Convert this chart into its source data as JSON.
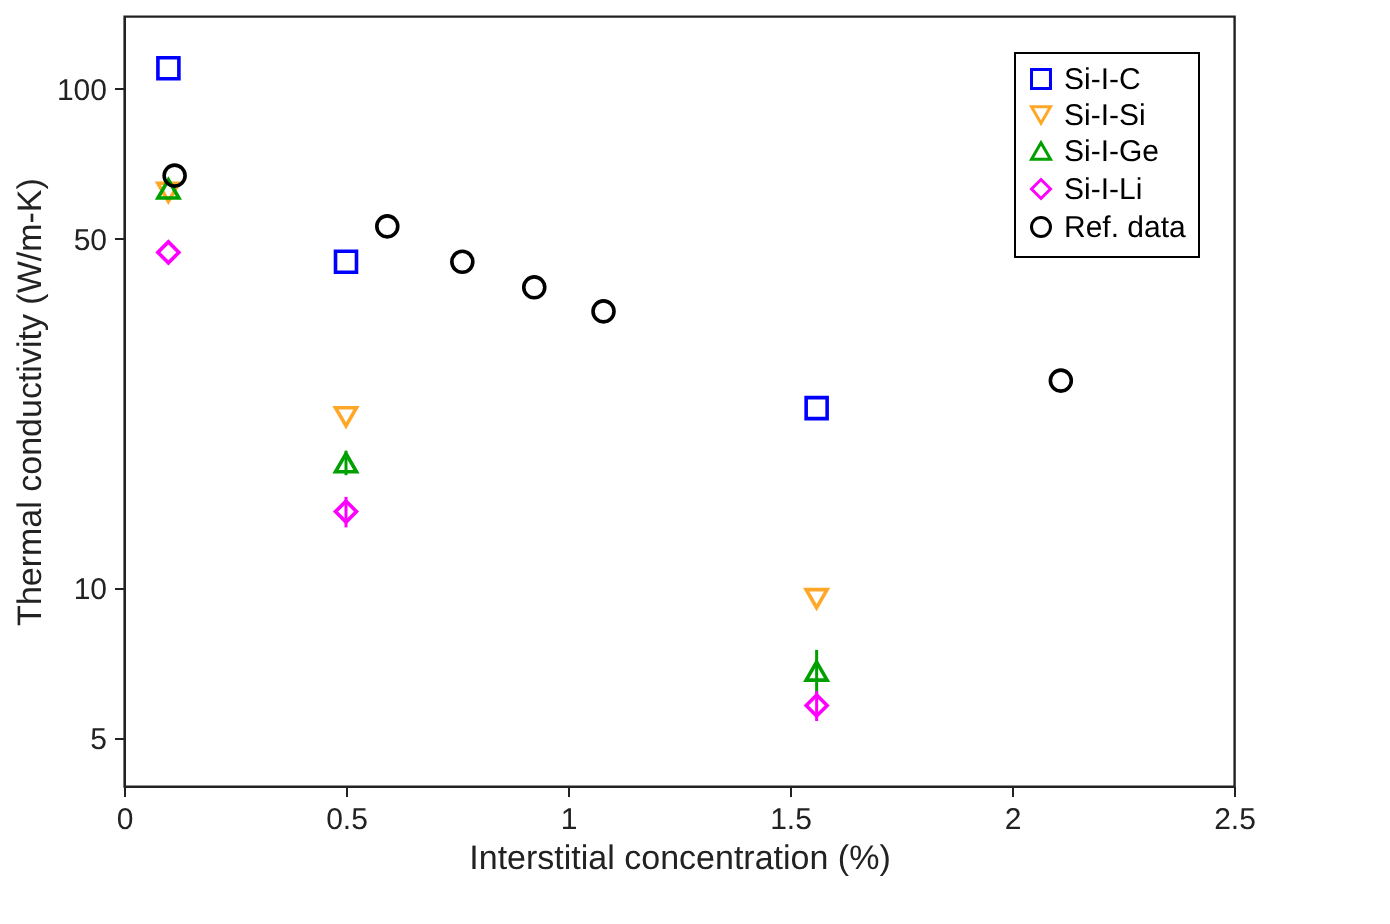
{
  "chart_data": {
    "type": "scatter",
    "xlabel": "Interstitial concentration (%)",
    "ylabel": "Thermal conductivity (W/m-K)",
    "xlim": [
      0,
      2.5
    ],
    "xticks": [
      0,
      0.5,
      1,
      1.5,
      2,
      2.5
    ],
    "ylim": [
      4,
      140
    ],
    "yticks": [
      5,
      10,
      50,
      100
    ],
    "log": "y",
    "grid": false,
    "legend": "top right",
    "series": [
      {
        "name": "Si-I-C",
        "color": "#0000ff",
        "marker": "square",
        "x": [
          0.1,
          0.5,
          1.56
        ],
        "values": [
          110,
          45,
          22.9
        ]
      },
      {
        "name": "Si-I-Si",
        "color": "#ffa726",
        "marker": "triangle-down",
        "x": [
          0.1,
          0.5,
          1.56
        ],
        "values": [
          62,
          22,
          9.5
        ]
      },
      {
        "name": "Si-I-Ge",
        "color": "#00a000",
        "marker": "triangle",
        "x": [
          0.1,
          0.5,
          1.56
        ],
        "values": [
          63,
          17.8,
          6.8
        ],
        "errors": [
          null,
          1.0,
          0.7
        ]
      },
      {
        "name": "Si-I-Li",
        "color": "#ff00ff",
        "marker": "diamond",
        "x": [
          0.1,
          0.5,
          1.56
        ],
        "values": [
          47,
          14.2,
          5.8
        ],
        "errors": [
          null,
          1.0,
          0.4
        ]
      },
      {
        "name": "Ref. data",
        "color": "#000000",
        "marker": "circle",
        "x": [
          0.114,
          0.593,
          0.762,
          0.924,
          1.08,
          2.11
        ],
        "values": [
          67,
          53,
          45,
          40,
          35.8,
          26
        ]
      }
    ]
  }
}
